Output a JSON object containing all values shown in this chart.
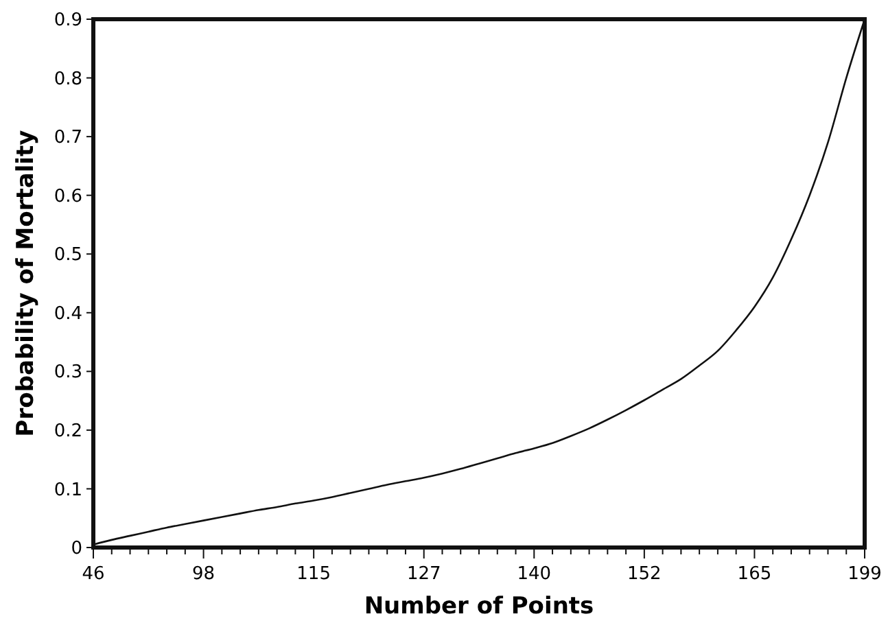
{
  "chart_data": {
    "type": "line",
    "xlabel": "Number of Points",
    "ylabel": "Probability of Mortality",
    "categories": [
      "46",
      null,
      null,
      null,
      null,
      null,
      "98",
      null,
      null,
      null,
      null,
      null,
      "115",
      null,
      null,
      null,
      null,
      null,
      "127",
      null,
      null,
      null,
      null,
      null,
      "140",
      null,
      null,
      null,
      null,
      null,
      "152",
      null,
      null,
      null,
      null,
      null,
      "165",
      null,
      null,
      null,
      null,
      null,
      "199"
    ],
    "series": [
      {
        "color": "#111111",
        "values": [
          0.005,
          0.013,
          0.02,
          0.027,
          0.034,
          0.04,
          0.046,
          0.052,
          0.058,
          0.064,
          0.069,
          0.075,
          0.08,
          0.086,
          0.093,
          0.1,
          0.107,
          0.113,
          0.119,
          0.126,
          0.134,
          0.143,
          0.152,
          0.161,
          0.169,
          0.178,
          0.19,
          0.203,
          0.218,
          0.234,
          0.251,
          0.269,
          0.287,
          0.31,
          0.335,
          0.37,
          0.41,
          0.46,
          0.525,
          0.6,
          0.69,
          0.8,
          0.9
        ]
      }
    ],
    "ylim": [
      0,
      0.9
    ],
    "yticks": [
      0,
      0.1,
      0.2,
      0.3,
      0.4,
      0.5,
      0.6,
      0.7,
      0.8,
      0.9
    ],
    "grid": false,
    "marker": "none",
    "line_style": "solid"
  }
}
